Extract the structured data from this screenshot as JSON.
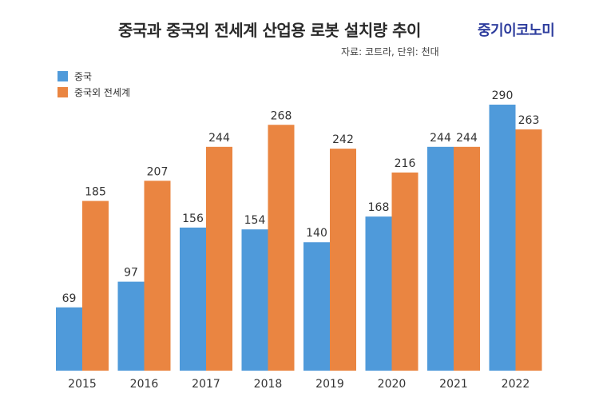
{
  "header": {
    "title": "중국과 중국외 전세계 산업용 로봇 설치량 추이",
    "logo": "중기이코노미",
    "source": "자료: 코트라, 단위: 천대"
  },
  "chart_data": {
    "type": "bar",
    "categories": [
      "2015",
      "2016",
      "2017",
      "2018",
      "2019",
      "2020",
      "2021",
      "2022"
    ],
    "series": [
      {
        "name": "중국",
        "color": "#4f9ada",
        "values": [
          69,
          97,
          156,
          154,
          140,
          168,
          244,
          290
        ]
      },
      {
        "name": "중국외 전세계",
        "color": "#ea8541",
        "values": [
          185,
          207,
          244,
          268,
          242,
          216,
          244,
          263
        ]
      }
    ],
    "title": "중국과 중국외 전세계 산업용 로봇 설치량 추이",
    "xlabel": "",
    "ylabel": "",
    "ylim": [
      0,
      290
    ],
    "grid": false,
    "legend": "top-left"
  }
}
